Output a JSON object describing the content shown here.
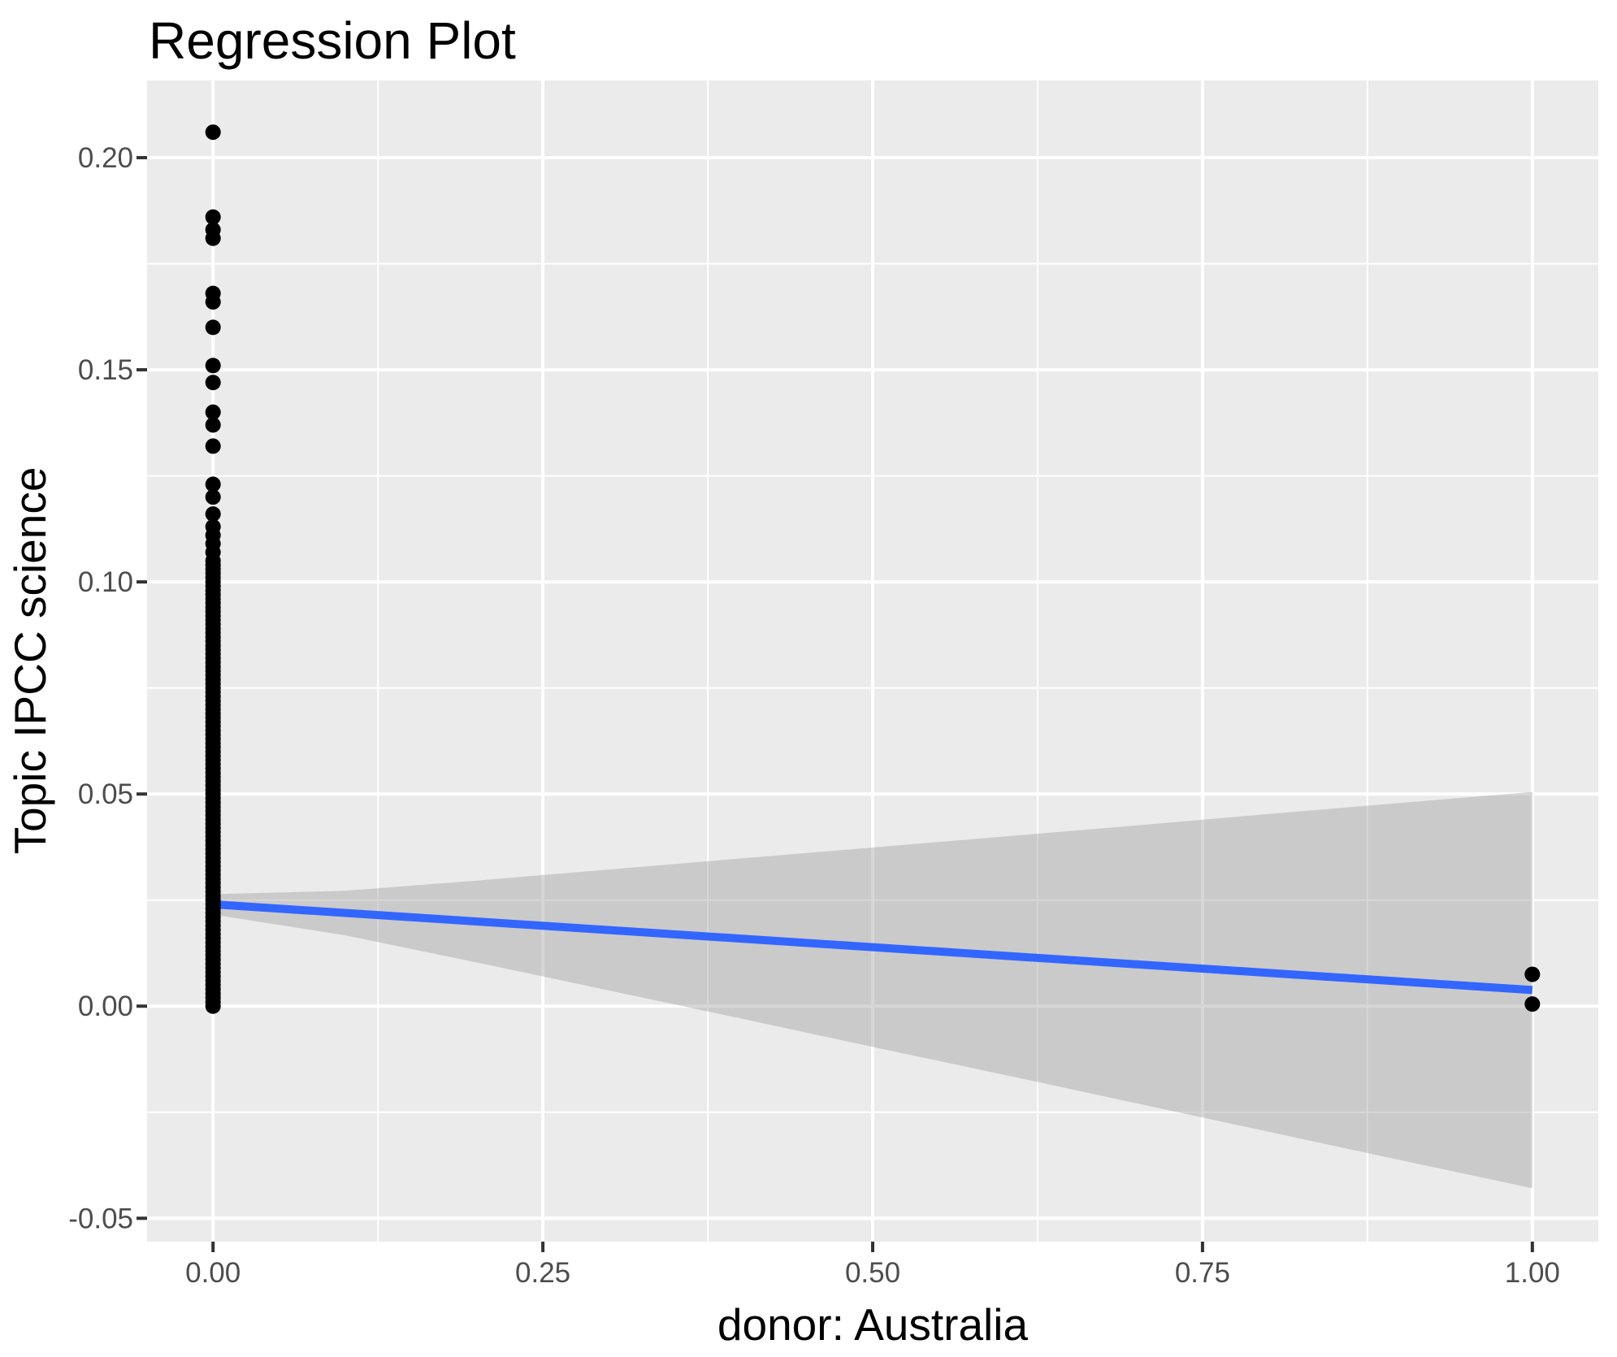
{
  "chart_data": {
    "type": "scatter",
    "title": "Regression Plot",
    "xlabel": "donor: Australia",
    "ylabel": "Topic IPCC science",
    "xlim": [
      -0.05,
      1.05
    ],
    "ylim": [
      -0.0555,
      0.2182
    ],
    "grid": true,
    "legend": "none",
    "x_ticks": [
      {
        "value": 0.0,
        "label": "0.00"
      },
      {
        "value": 0.25,
        "label": "0.25"
      },
      {
        "value": 0.5,
        "label": "0.50"
      },
      {
        "value": 0.75,
        "label": "0.75"
      },
      {
        "value": 1.0,
        "label": "1.00"
      }
    ],
    "y_ticks": [
      {
        "value": -0.05,
        "label": "-0.05"
      },
      {
        "value": 0.0,
        "label": "0.00"
      },
      {
        "value": 0.05,
        "label": "0.05"
      },
      {
        "value": 0.1,
        "label": "0.10"
      },
      {
        "value": 0.15,
        "label": "0.15"
      },
      {
        "value": 0.2,
        "label": "0.20"
      }
    ],
    "x_minor_ticks": [
      0.125,
      0.375,
      0.625,
      0.875
    ],
    "y_minor_ticks": [
      -0.025,
      0.025,
      0.075,
      0.125,
      0.175
    ],
    "scatter": {
      "x0_discrete_y": [
        0.206,
        0.186,
        0.183,
        0.181,
        0.168,
        0.166,
        0.16,
        0.151,
        0.147,
        0.14,
        0.137,
        0.132,
        0.123,
        0.12,
        0.116,
        0.113,
        0.111,
        0.109,
        0.107
      ],
      "x0_dense_y": {
        "from": 0.0,
        "to": 0.105,
        "step": 0.001
      },
      "x1_y": [
        0.0075,
        0.0005
      ],
      "point_radius_px": 9.5
    },
    "regression_line": {
      "x": [
        0,
        1
      ],
      "y": [
        0.024,
        0.0038
      ]
    },
    "ci_band": {
      "x": [
        0.0,
        0.1,
        0.2,
        0.3,
        0.4,
        0.5,
        0.6,
        0.7,
        0.8,
        0.9,
        1.0
      ],
      "upper": [
        0.0264,
        0.0272,
        0.0296,
        0.0322,
        0.0348,
        0.0374,
        0.04,
        0.0426,
        0.0453,
        0.0479,
        0.0505
      ],
      "lower": [
        0.0216,
        0.0167,
        0.0103,
        0.0037,
        -0.0029,
        -0.0096,
        -0.0162,
        -0.0229,
        -0.0296,
        -0.0363,
        -0.0429
      ]
    },
    "colors": {
      "plot_bg": "#FFFFFF",
      "panel_bg": "#EBEBEB",
      "grid": "#FFFFFF",
      "point": "#000000",
      "line": "#3366FF",
      "band": "#999999",
      "band_alpha": 0.4,
      "tick_mark": "#333333",
      "tick_text": "#4D4D4D",
      "title_text": "#000000"
    }
  }
}
